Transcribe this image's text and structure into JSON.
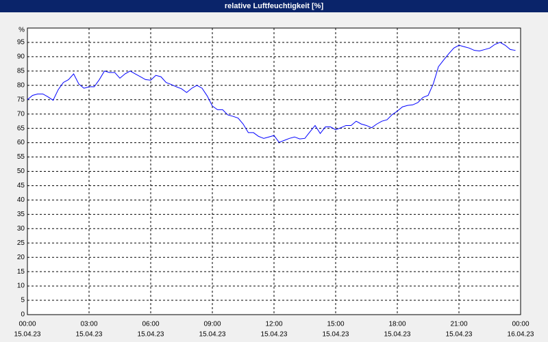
{
  "chart_data": {
    "type": "line",
    "title": "relative Luftfeuchtigkeit [%]",
    "ylabel": "%",
    "x": [
      0,
      0.25,
      0.5,
      0.75,
      1,
      1.25,
      1.5,
      1.75,
      2,
      2.25,
      2.5,
      2.75,
      3,
      3.25,
      3.5,
      3.75,
      4,
      4.25,
      4.5,
      4.75,
      5,
      5.25,
      5.5,
      5.75,
      6,
      6.25,
      6.5,
      6.75,
      7,
      7.25,
      7.5,
      7.75,
      8,
      8.25,
      8.5,
      8.75,
      9,
      9.25,
      9.5,
      9.75,
      10,
      10.25,
      10.5,
      10.75,
      11,
      11.25,
      11.5,
      11.75,
      12,
      12.25,
      12.5,
      12.75,
      13,
      13.25,
      13.5,
      13.75,
      14,
      14.25,
      14.5,
      14.75,
      15,
      15.25,
      15.5,
      15.75,
      16,
      16.25,
      16.5,
      16.75,
      17,
      17.25,
      17.5,
      17.75,
      18,
      18.25,
      18.5,
      18.75,
      19,
      19.25,
      19.5,
      19.75,
      20,
      20.25,
      20.5,
      20.75,
      21,
      21.25,
      21.5,
      21.75,
      22,
      22.25,
      22.5,
      22.75,
      23,
      23.25,
      23.5,
      23.75
    ],
    "series": [
      {
        "name": "relative Luftfeuchtigkeit",
        "color": "#0000ff",
        "values": [
          75,
          76.5,
          77,
          77,
          76,
          74.8,
          78.5,
          81,
          82,
          84,
          80.5,
          79,
          79.5,
          79.5,
          82,
          85,
          84.5,
          84.5,
          82.5,
          84,
          85,
          84,
          83,
          82,
          81.8,
          83.5,
          83,
          81,
          80.3,
          79.5,
          78.8,
          77.5,
          79,
          80,
          79,
          76.3,
          72.8,
          71.5,
          71.5,
          69.7,
          69.2,
          68.6,
          66.5,
          63.5,
          63.5,
          62.2,
          61.5,
          62,
          62.5,
          60.1,
          60.8,
          61.5,
          62,
          61.3,
          61.5,
          63.8,
          66,
          63.2,
          65.5,
          65.5,
          64.5,
          65.2,
          66,
          66,
          67.5,
          66.5,
          66,
          65.2,
          66.5,
          67.5,
          68,
          69.8,
          71,
          72.5,
          73,
          73.2,
          74,
          75.8,
          76.5,
          80.5,
          86.5,
          88.8,
          91,
          93,
          94,
          93.5,
          93,
          92.2,
          92,
          92.5,
          93,
          94.3,
          95,
          94,
          92.5,
          92.2
        ]
      }
    ],
    "xlim": [
      0,
      24
    ],
    "xticks": [
      {
        "value": 0,
        "label": "00:00"
      },
      {
        "value": 3,
        "label": "03:00"
      },
      {
        "value": 6,
        "label": "06:00"
      },
      {
        "value": 9,
        "label": "09:00"
      },
      {
        "value": 12,
        "label": "12:00"
      },
      {
        "value": 15,
        "label": "15:00"
      },
      {
        "value": 18,
        "label": "18:00"
      },
      {
        "value": 21,
        "label": "21:00"
      },
      {
        "value": 24,
        "label": "00:00"
      }
    ],
    "xtick_dates": [
      "15.04.23",
      "15.04.23",
      "15.04.23",
      "15.04.23",
      "15.04.23",
      "15.04.23",
      "15.04.23",
      "15.04.23",
      "16.04.23"
    ],
    "ylim": [
      0,
      100
    ],
    "yticks": [
      0,
      5,
      10,
      15,
      20,
      25,
      30,
      35,
      40,
      45,
      50,
      55,
      60,
      65,
      70,
      75,
      80,
      85,
      90,
      95
    ],
    "grid": true,
    "title_bar_color": "#0a246a"
  }
}
